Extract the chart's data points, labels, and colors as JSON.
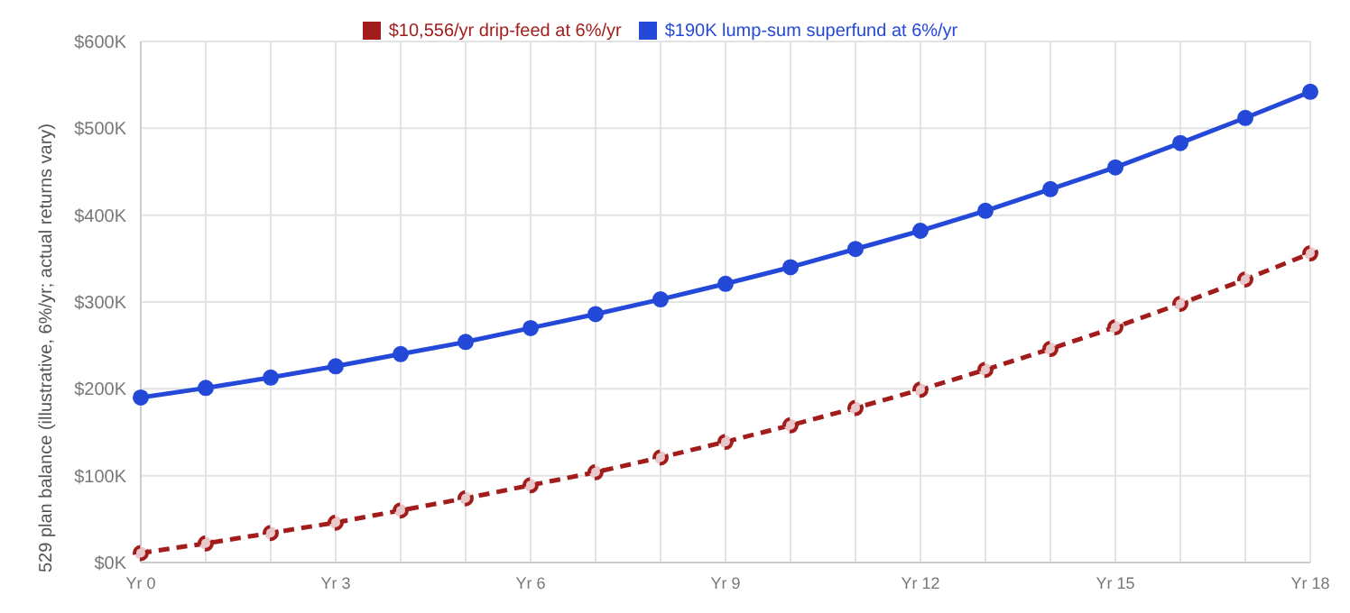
{
  "chart_data": {
    "type": "line",
    "ylabel": "529 plan balance (illustrative, 6%/yr; actual returns vary)",
    "categories": [
      "Yr 0",
      null,
      null,
      "Yr 3",
      null,
      null,
      "Yr 6",
      null,
      null,
      "Yr 9",
      null,
      null,
      "Yr 12",
      null,
      null,
      "Yr 15",
      null,
      null,
      "Yr 18"
    ],
    "series": [
      {
        "name": "$190K lump-sum superfund at 6%/yr",
        "color": "#2449d8",
        "line_style": "solid",
        "values": [
          190000,
          201000,
          213000,
          226000,
          240000,
          254000,
          270000,
          286000,
          303000,
          321000,
          340000,
          361000,
          382000,
          405000,
          430000,
          455000,
          483000,
          512000,
          542000
        ]
      },
      {
        "name": "$10,556/yr drip-feed at 6%/yr",
        "color": "#a31c1c",
        "line_style": "dashed",
        "values": [
          11000,
          22000,
          34000,
          46000,
          60000,
          74000,
          89000,
          104000,
          121000,
          139000,
          158000,
          178000,
          199000,
          222000,
          246000,
          271000,
          298000,
          326000,
          356000
        ]
      }
    ],
    "ylim": [
      0,
      600000
    ],
    "yticks": [
      {
        "value": 0,
        "label": "$0K"
      },
      {
        "value": 100000,
        "label": "$100K"
      },
      {
        "value": 200000,
        "label": "$200K"
      },
      {
        "value": 300000,
        "label": "$300K"
      },
      {
        "value": 400000,
        "label": "$400K"
      },
      {
        "value": 500000,
        "label": "$500K"
      },
      {
        "value": 600000,
        "label": "$600K"
      }
    ],
    "grid": true,
    "legend": "top",
    "marker": "circle"
  }
}
